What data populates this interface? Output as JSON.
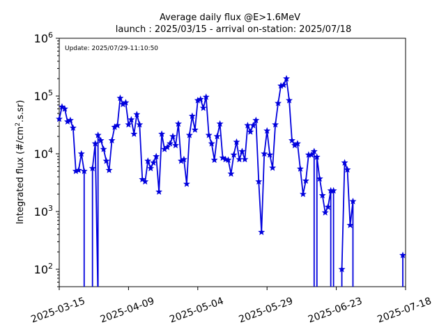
{
  "chart_data": {
    "type": "line",
    "title": "Average daily flux @E>1.6MeV",
    "subtitle": "launch : 2025/03/15 - arrival on-station: 2025/07/18",
    "update_note": "Update: 2025/07/29-11:10:50",
    "xlabel": "",
    "ylabel_main": "Integrated flux (#/cm",
    "ylabel_sup": "2",
    "ylabel_tail": ".s.sr)",
    "x_type": "date",
    "xlim": [
      "2025-03-15",
      "2025-07-18"
    ],
    "x_ticks": [
      "2025-03-15",
      "2025-04-09",
      "2025-05-04",
      "2025-05-29",
      "2025-06-23",
      "2025-07-18"
    ],
    "y_scale": "log",
    "ylim": [
      50,
      1000000
    ],
    "y_ticks": [
      {
        "value": 100,
        "base": "10",
        "exp": "2"
      },
      {
        "value": 1000,
        "base": "10",
        "exp": "3"
      },
      {
        "value": 10000,
        "base": "10",
        "exp": "4"
      },
      {
        "value": 100000,
        "base": "10",
        "exp": "5"
      },
      {
        "value": 1000000,
        "base": "10",
        "exp": "6"
      }
    ],
    "grid": false,
    "legend": "none",
    "series": [
      {
        "color": "#0000dd",
        "marker": "star",
        "points": [
          [
            "2025-03-15",
            40000
          ],
          [
            "2025-03-16",
            65000
          ],
          [
            "2025-03-17",
            60000
          ],
          [
            "2025-03-18",
            36000
          ],
          [
            "2025-03-19",
            38000
          ],
          [
            "2025-03-20",
            28000
          ],
          [
            "2025-03-21",
            5000
          ],
          [
            "2025-03-22",
            5200
          ],
          [
            "2025-03-23",
            10000
          ],
          [
            "2025-03-24",
            5000
          ],
          [
            "2025-03-24",
            0.1
          ],
          [
            "2025-03-27",
            0.1
          ],
          [
            "2025-03-27",
            5600
          ],
          [
            "2025-03-28",
            15000
          ],
          [
            "2025-03-29",
            0.1
          ],
          [
            "2025-03-29",
            21000
          ],
          [
            "2025-03-30",
            17000
          ],
          [
            "2025-03-31",
            12000
          ],
          [
            "2025-04-01",
            7500
          ],
          [
            "2025-04-02",
            5200
          ],
          [
            "2025-04-03",
            17000
          ],
          [
            "2025-04-04",
            29000
          ],
          [
            "2025-04-05",
            31000
          ],
          [
            "2025-04-06",
            92000
          ],
          [
            "2025-04-07",
            72000
          ],
          [
            "2025-04-08",
            77000
          ],
          [
            "2025-04-09",
            32000
          ],
          [
            "2025-04-10",
            39000
          ],
          [
            "2025-04-11",
            22000
          ],
          [
            "2025-04-12",
            48000
          ],
          [
            "2025-04-13",
            32000
          ],
          [
            "2025-04-14",
            3600
          ],
          [
            "2025-04-15",
            3300
          ],
          [
            "2025-04-16",
            7500
          ],
          [
            "2025-04-17",
            5600
          ],
          [
            "2025-04-18",
            7000
          ],
          [
            "2025-04-19",
            9000
          ],
          [
            "2025-04-20",
            2200
          ],
          [
            "2025-04-21",
            22000
          ],
          [
            "2025-04-22",
            12000
          ],
          [
            "2025-04-23",
            13000
          ],
          [
            "2025-04-24",
            15000
          ],
          [
            "2025-04-25",
            20000
          ],
          [
            "2025-04-26",
            14000
          ],
          [
            "2025-04-27",
            33000
          ],
          [
            "2025-04-28",
            7500
          ],
          [
            "2025-04-29",
            8000
          ],
          [
            "2025-04-30",
            3000
          ],
          [
            "2025-05-01",
            21000
          ],
          [
            "2025-05-02",
            45000
          ],
          [
            "2025-05-03",
            26000
          ],
          [
            "2025-05-04",
            84000
          ],
          [
            "2025-05-05",
            88000
          ],
          [
            "2025-05-06",
            62000
          ],
          [
            "2025-05-07",
            96000
          ],
          [
            "2025-05-08",
            21000
          ],
          [
            "2025-05-09",
            15000
          ],
          [
            "2025-05-10",
            7800
          ],
          [
            "2025-05-11",
            20000
          ],
          [
            "2025-05-12",
            33000
          ],
          [
            "2025-05-13",
            8500
          ],
          [
            "2025-05-14",
            8000
          ],
          [
            "2025-05-15",
            7800
          ],
          [
            "2025-05-16",
            4500
          ],
          [
            "2025-05-17",
            9600
          ],
          [
            "2025-05-18",
            16000
          ],
          [
            "2025-05-19",
            8000
          ],
          [
            "2025-05-20",
            11000
          ],
          [
            "2025-05-21",
            8000
          ],
          [
            "2025-05-22",
            31000
          ],
          [
            "2025-05-23",
            24000
          ],
          [
            "2025-05-24",
            31000
          ],
          [
            "2025-05-25",
            38000
          ],
          [
            "2025-05-26",
            3300
          ],
          [
            "2025-05-27",
            440
          ],
          [
            "2025-05-28",
            10000
          ],
          [
            "2025-05-29",
            25000
          ],
          [
            "2025-05-30",
            9600
          ],
          [
            "2025-05-31",
            5700
          ],
          [
            "2025-06-01",
            32000
          ],
          [
            "2025-06-02",
            75000
          ],
          [
            "2025-06-03",
            150000
          ],
          [
            "2025-06-04",
            155000
          ],
          [
            "2025-06-05",
            200000
          ],
          [
            "2025-06-06",
            84000
          ],
          [
            "2025-06-07",
            17000
          ],
          [
            "2025-06-08",
            14000
          ],
          [
            "2025-06-09",
            15000
          ],
          [
            "2025-06-10",
            5500
          ],
          [
            "2025-06-11",
            2000
          ],
          [
            "2025-06-12",
            3400
          ],
          [
            "2025-06-13",
            9600
          ],
          [
            "2025-06-14",
            9600
          ],
          [
            "2025-06-15",
            11000
          ],
          [
            "2025-06-15",
            0.1
          ],
          [
            "2025-06-16",
            0.1
          ],
          [
            "2025-06-16",
            8800
          ],
          [
            "2025-06-17",
            3700
          ],
          [
            "2025-06-18",
            1900
          ],
          [
            "2025-06-19",
            960
          ],
          [
            "2025-06-20",
            1200
          ],
          [
            "2025-06-21",
            2300
          ],
          [
            "2025-06-21",
            0.1
          ],
          [
            "2025-06-22",
            0.1
          ],
          [
            "2025-06-22",
            2300
          ],
          [
            "2025-06-22",
            0.1
          ],
          [
            "2025-06-25",
            0.1
          ],
          [
            "2025-06-25",
            100
          ],
          [
            "2025-06-26",
            7000
          ],
          [
            "2025-06-27",
            5300
          ],
          [
            "2025-06-28",
            580
          ],
          [
            "2025-06-29",
            1500
          ],
          [
            "2025-06-29",
            0.1
          ],
          [
            "2025-07-17",
            0.1
          ],
          [
            "2025-07-17",
            175
          ]
        ]
      }
    ]
  }
}
